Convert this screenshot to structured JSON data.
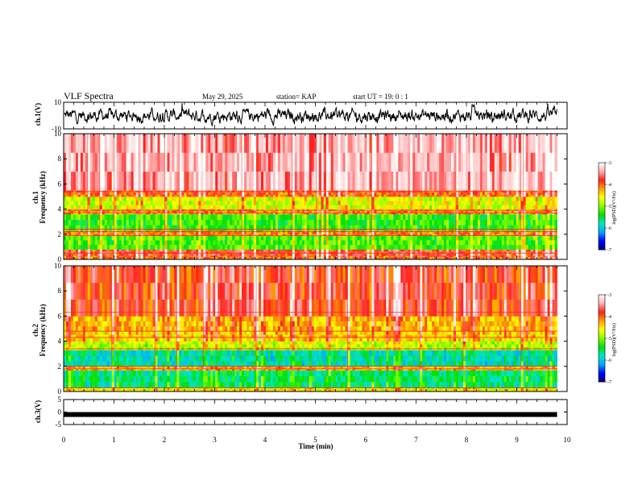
{
  "header": {
    "title": "VLF Spectra",
    "date": "May 29, 2025",
    "station": "station= KAP",
    "start": "start  UT =   19: 0  : 1"
  },
  "chart_data": {
    "type": "heatmap",
    "x": {
      "label": "Time  (min)",
      "range": [
        0,
        10
      ],
      "ticks": [
        "0",
        "1",
        "2",
        "3",
        "4",
        "5",
        "6",
        "7",
        "8",
        "9",
        "10"
      ],
      "data_end": 9.8
    },
    "panels": [
      {
        "name": "ch1-waveform",
        "type": "line",
        "ylabel": "ch.1(V)",
        "yrange": [
          -10,
          10
        ],
        "yticks": [
          "10",
          "-10"
        ],
        "amplitude_hint": 4
      },
      {
        "name": "ch1-spectrogram",
        "type": "heatmap",
        "ylabel1": "ch.1",
        "ylabel2": "Frequency  (kHz)",
        "yrange": [
          0,
          10
        ],
        "yticks": [
          "0",
          "2",
          "4",
          "6",
          "8",
          "10"
        ],
        "bands": [
          {
            "from": 0.0,
            "to": 0.3,
            "level": -4.0
          },
          {
            "from": 0.3,
            "to": 0.8,
            "level": -3.8
          },
          {
            "from": 0.8,
            "to": 1.9,
            "level": -5.2
          },
          {
            "from": 1.9,
            "to": 2.3,
            "level": -4.1
          },
          {
            "from": 2.3,
            "to": 3.6,
            "level": -5.3
          },
          {
            "from": 3.6,
            "to": 4.0,
            "level": -4.2
          },
          {
            "from": 4.0,
            "to": 5.0,
            "level": -4.7
          },
          {
            "from": 5.0,
            "to": 5.5,
            "level": -4.0
          },
          {
            "from": 5.5,
            "to": 10.0,
            "level": -3.4
          }
        ],
        "lines_khz": [
          0.5,
          1.9,
          2.2,
          2.4,
          3.7,
          3.9,
          5.4
        ],
        "colorbar": {
          "label": "log(PSD)(V²/Hz)",
          "range": [
            -7,
            -3
          ],
          "ticks": [
            "-3",
            "-4",
            "-5",
            "-6",
            "-7"
          ]
        }
      },
      {
        "name": "ch2-spectrogram",
        "type": "heatmap",
        "ylabel1": "ch.2",
        "ylabel2": "Frequency  (kHz)",
        "yrange": [
          0,
          10
        ],
        "yticks": [
          "0",
          "2",
          "4",
          "6",
          "8",
          "10"
        ],
        "bands": [
          {
            "from": 0.0,
            "to": 0.3,
            "level": -4.6
          },
          {
            "from": 0.3,
            "to": 1.7,
            "level": -5.6
          },
          {
            "from": 1.7,
            "to": 2.0,
            "level": -4.3
          },
          {
            "from": 2.0,
            "to": 3.3,
            "level": -5.8
          },
          {
            "from": 3.3,
            "to": 4.0,
            "level": -4.8
          },
          {
            "from": 4.0,
            "to": 4.8,
            "level": -4.4
          },
          {
            "from": 4.8,
            "to": 6.0,
            "level": -4.3
          },
          {
            "from": 6.0,
            "to": 10.0,
            "level": -3.8
          }
        ],
        "lines_khz": [
          0.3,
          1.8,
          2.0,
          3.4,
          4.3,
          4.8,
          6.3
        ],
        "colorbar": {
          "label": "log(PSD)(V²/Hz)",
          "range": [
            -7,
            -3
          ],
          "ticks": [
            "-3",
            "-4",
            "-5",
            "-6",
            "-7"
          ]
        }
      },
      {
        "name": "ch3-waveform",
        "type": "line",
        "ylabel": "ch.3(V)",
        "yrange": [
          -5,
          5
        ],
        "yticks": [
          "5",
          "0",
          "-5"
        ],
        "trace_value": -1
      }
    ],
    "colormap": [
      "#000080",
      "#0000ff",
      "#00aaff",
      "#00e5c0",
      "#00e000",
      "#80ff00",
      "#ffff00",
      "#ffa000",
      "#ff2020",
      "#ffb0b0",
      "#ffffff"
    ]
  }
}
